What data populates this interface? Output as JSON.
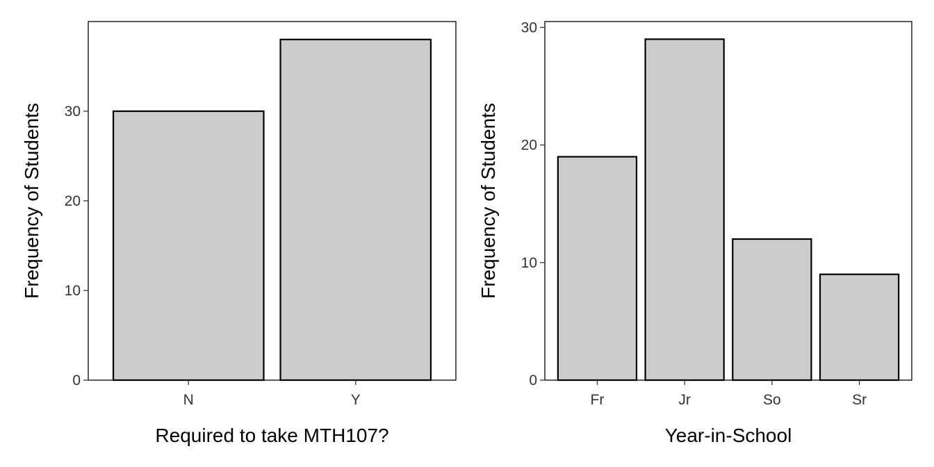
{
  "chart_data": [
    {
      "type": "bar",
      "categories": [
        "N",
        "Y"
      ],
      "values": [
        30,
        38
      ],
      "xlabel": "Required to take MTH107?",
      "ylabel": "Frequency of Students",
      "ylim": [
        0,
        40
      ],
      "yticks": [
        0,
        10,
        20,
        30
      ],
      "grid": false,
      "bar_fill": "#cccccc",
      "bar_stroke": "#000000"
    },
    {
      "type": "bar",
      "categories": [
        "Fr",
        "Jr",
        "So",
        "Sr"
      ],
      "values": [
        19,
        29,
        12,
        9
      ],
      "xlabel": "Year-in-School",
      "ylabel": "Frequency of Students",
      "ylim": [
        0,
        30.5
      ],
      "yticks": [
        0,
        10,
        20,
        30
      ],
      "grid": false,
      "bar_fill": "#cccccc",
      "bar_stroke": "#000000"
    }
  ]
}
